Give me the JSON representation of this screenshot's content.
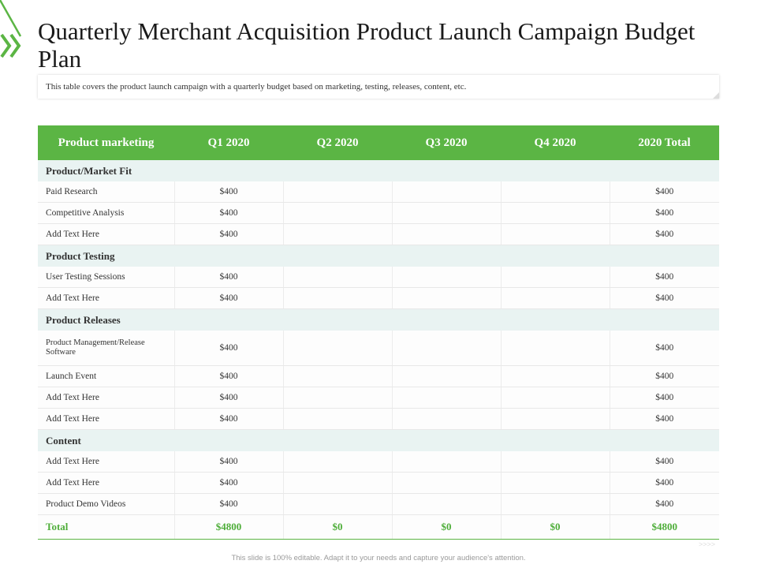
{
  "title": "Quarterly Merchant Acquisition Product Launch Campaign Budget Plan",
  "description": "This table covers the product launch campaign with a quarterly budget based on marketing, testing, releases, content, etc.",
  "colors": {
    "accent": "#5bb544",
    "section_bg": "#e9f3f2",
    "total_text": "#4fae3a"
  },
  "table": {
    "headers": [
      "Product marketing",
      "Q1 2020",
      "Q2 2020",
      "Q3 2020",
      "Q4 2020",
      "2020 Total"
    ],
    "sections": [
      {
        "name": "Product/Market Fit",
        "rows": [
          {
            "label": "Paid Research",
            "values": [
              "$400",
              "",
              "",
              "",
              "$400"
            ]
          },
          {
            "label": "Competitive Analysis",
            "values": [
              "$400",
              "",
              "",
              "",
              "$400"
            ]
          },
          {
            "label": "Add Text Here",
            "values": [
              "$400",
              "",
              "",
              "",
              "$400"
            ]
          }
        ]
      },
      {
        "name": "Product Testing",
        "rows": [
          {
            "label": "User Testing Sessions",
            "values": [
              "$400",
              "",
              "",
              "",
              "$400"
            ]
          },
          {
            "label": "Add Text Here",
            "values": [
              "$400",
              "",
              "",
              "",
              "$400"
            ]
          }
        ]
      },
      {
        "name": "Product Releases",
        "rows": [
          {
            "label": "Product Management/Release Software",
            "values": [
              "$400",
              "",
              "",
              "",
              "$400"
            ]
          },
          {
            "label": "Launch Event",
            "values": [
              "$400",
              "",
              "",
              "",
              "$400"
            ]
          },
          {
            "label": "Add Text Here",
            "values": [
              "$400",
              "",
              "",
              "",
              "$400"
            ]
          },
          {
            "label": "Add Text Here",
            "values": [
              "$400",
              "",
              "",
              "",
              "$400"
            ]
          }
        ]
      },
      {
        "name": "Content",
        "rows": [
          {
            "label": "Add Text Here",
            "values": [
              "$400",
              "",
              "",
              "",
              "$400"
            ]
          },
          {
            "label": "Add Text Here",
            "values": [
              "$400",
              "",
              "",
              "",
              "$400"
            ]
          },
          {
            "label": "Product Demo Videos",
            "values": [
              "$400",
              "",
              "",
              "",
              "$400"
            ]
          }
        ]
      }
    ],
    "total": {
      "label": "Total",
      "values": [
        "$4800",
        "$0",
        "$0",
        "$0",
        "$4800"
      ]
    }
  },
  "footer": "This slide is 100% editable. Adapt it to your needs and capture your audience's attention."
}
